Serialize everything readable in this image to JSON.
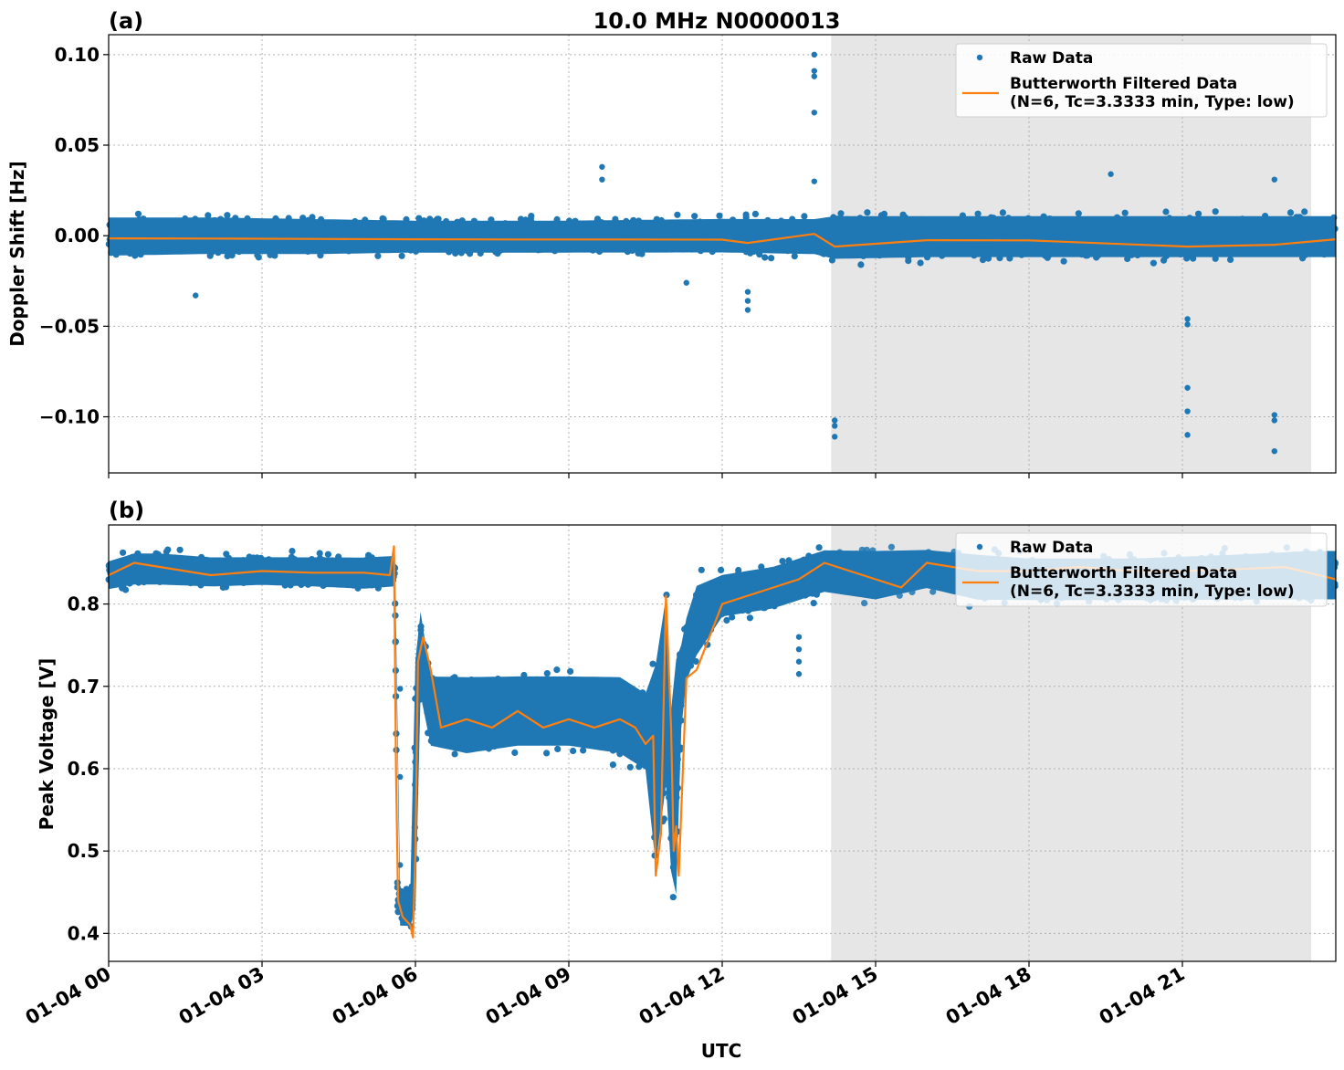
{
  "figure": {
    "title": "10.0 MHz N0000013",
    "xlabel": "UTC"
  },
  "chart_data": [
    {
      "type": "scatter",
      "panel_label": "(a)",
      "ylabel": "Doppler Shift [Hz]",
      "xlim_hours": [
        0,
        24
      ],
      "ylim": [
        -0.131,
        0.111
      ],
      "y_ticks": [
        0.1,
        0.05,
        0.0,
        -0.05,
        -0.1
      ],
      "y_tick_labels": [
        "0.10",
        "0.05",
        "0.00",
        "−0.05",
        "−0.10"
      ],
      "x_tick_hours": [
        0,
        3,
        6,
        9,
        12,
        15,
        18,
        21
      ],
      "x_tick_labels": [
        "01-04 00",
        "01-04 03",
        "01-04 06",
        "01-04 09",
        "01-04 12",
        "01-04 15",
        "01-04 18",
        "01-04 21"
      ],
      "grid": true,
      "legend_placement": "upper right",
      "shaded_span_hours": [
        14.13,
        23.52
      ],
      "series": [
        {
          "name": "Raw Data",
          "kind": "points",
          "color": "#1f77b4",
          "band": {
            "x": [
              0,
              2,
              4,
              6,
              9,
              12,
              13.8,
              14.2,
              16,
              18,
              20,
              22,
              24
            ],
            "y_low": [
              -0.013,
              -0.012,
              -0.012,
              -0.011,
              -0.011,
              -0.011,
              -0.012,
              -0.015,
              -0.014,
              -0.014,
              -0.014,
              -0.014,
              -0.014
            ],
            "y_high": [
              0.012,
              0.012,
              0.011,
              0.01,
              0.01,
              0.011,
              0.011,
              0.013,
              0.013,
              0.013,
              0.013,
              0.013,
              0.013
            ]
          },
          "outliers": [
            {
              "x": 13.8,
              "y": 0.1
            },
            {
              "x": 13.8,
              "y": 0.091
            },
            {
              "x": 13.8,
              "y": 0.088
            },
            {
              "x": 13.8,
              "y": 0.068
            },
            {
              "x": 13.8,
              "y": 0.03
            },
            {
              "x": 9.65,
              "y": 0.038
            },
            {
              "x": 9.65,
              "y": 0.031
            },
            {
              "x": 19.6,
              "y": 0.034
            },
            {
              "x": 22.8,
              "y": 0.031
            },
            {
              "x": 12.5,
              "y": -0.031
            },
            {
              "x": 12.5,
              "y": -0.036
            },
            {
              "x": 12.5,
              "y": -0.041
            },
            {
              "x": 1.7,
              "y": -0.033
            },
            {
              "x": 11.3,
              "y": -0.026
            },
            {
              "x": 14.2,
              "y": -0.102
            },
            {
              "x": 14.2,
              "y": -0.105
            },
            {
              "x": 14.2,
              "y": -0.111
            },
            {
              "x": 21.1,
              "y": -0.046
            },
            {
              "x": 21.1,
              "y": -0.049
            },
            {
              "x": 21.1,
              "y": -0.084
            },
            {
              "x": 21.1,
              "y": -0.097
            },
            {
              "x": 21.1,
              "y": -0.11
            },
            {
              "x": 22.8,
              "y": -0.099
            },
            {
              "x": 22.8,
              "y": -0.102
            },
            {
              "x": 22.8,
              "y": -0.119
            }
          ]
        },
        {
          "name": "Butterworth Filtered Data",
          "name_line2": "(N=6, Tc=3.3333 min, Type: low)",
          "kind": "line",
          "color": "#ff7f0e",
          "x": [
            0,
            2,
            4,
            6,
            8,
            10,
            12,
            12.5,
            13.8,
            14.2,
            16,
            18,
            21.1,
            22.8,
            24
          ],
          "y": [
            -0.0015,
            -0.0016,
            -0.0018,
            -0.002,
            -0.0021,
            -0.0021,
            -0.0022,
            -0.004,
            0.001,
            -0.006,
            -0.0025,
            -0.0026,
            -0.006,
            -0.005,
            -0.002
          ]
        }
      ]
    },
    {
      "type": "scatter",
      "panel_label": "(b)",
      "ylabel": "Peak Voltage [V]",
      "xlim_hours": [
        0,
        24
      ],
      "ylim": [
        0.366,
        0.896
      ],
      "y_ticks": [
        0.8,
        0.7,
        0.6,
        0.5,
        0.4
      ],
      "y_tick_labels": [
        "0.8",
        "0.7",
        "0.6",
        "0.5",
        "0.4"
      ],
      "x_tick_hours": [
        0,
        3,
        6,
        9,
        12,
        15,
        18,
        21
      ],
      "x_tick_labels": [
        "01-04 00",
        "01-04 03",
        "01-04 06",
        "01-04 09",
        "01-04 12",
        "01-04 15",
        "01-04 18",
        "01-04 21"
      ],
      "grid": true,
      "legend_placement": "upper right",
      "shaded_span_hours": [
        14.13,
        23.52
      ],
      "series": [
        {
          "name": "Raw Data",
          "kind": "points",
          "color": "#1f77b4",
          "band": {
            "x": [
              0,
              0.5,
              1.0,
              2.0,
              3.0,
              4.0,
              5.0,
              5.6,
              5.65,
              5.7,
              5.9,
              6.0,
              6.1,
              6.3,
              7.0,
              8.0,
              9.0,
              10.0,
              10.5,
              10.7,
              10.9,
              11.05,
              11.1,
              11.2,
              11.3,
              11.5,
              12.0,
              13.0,
              13.5,
              14.0,
              15.0,
              16.0,
              17.0,
              18.0,
              20.0,
              22.0,
              23.5,
              24.0
            ],
            "y_low": [
              0.815,
              0.82,
              0.82,
              0.818,
              0.82,
              0.818,
              0.815,
              0.818,
              0.42,
              0.405,
              0.405,
              0.4,
              0.68,
              0.62,
              0.61,
              0.62,
              0.62,
              0.61,
              0.59,
              0.46,
              0.56,
              0.405,
              0.42,
              0.64,
              0.7,
              0.73,
              0.78,
              0.79,
              0.8,
              0.81,
              0.8,
              0.815,
              0.8,
              0.8,
              0.8,
              0.8,
              0.8,
              0.8
            ],
            "y_high": [
              0.855,
              0.865,
              0.865,
              0.86,
              0.86,
              0.86,
              0.86,
              0.862,
              0.465,
              0.46,
              0.455,
              0.76,
              0.8,
              0.72,
              0.72,
              0.72,
              0.72,
              0.72,
              0.7,
              0.75,
              0.83,
              0.62,
              0.76,
              0.76,
              0.79,
              0.83,
              0.84,
              0.85,
              0.86,
              0.87,
              0.87,
              0.87,
              0.865,
              0.86,
              0.86,
              0.865,
              0.87,
              0.87
            ]
          },
          "outliers": [
            {
              "x": 5.7,
              "y": 0.697
            },
            {
              "x": 5.7,
              "y": 0.59
            },
            {
              "x": 5.7,
              "y": 0.483
            },
            {
              "x": 6.0,
              "y": 0.62
            },
            {
              "x": 6.0,
              "y": 0.57
            },
            {
              "x": 6.0,
              "y": 0.515
            },
            {
              "x": 13.5,
              "y": 0.715
            },
            {
              "x": 13.5,
              "y": 0.73
            },
            {
              "x": 13.5,
              "y": 0.745
            },
            {
              "x": 13.5,
              "y": 0.76
            }
          ]
        },
        {
          "name": "Butterworth Filtered Data",
          "name_line2": "(N=6, Tc=3.3333 min, Type: low)",
          "kind": "line",
          "color": "#ff7f0e",
          "x": [
            0,
            0.5,
            1.0,
            2.0,
            3.0,
            4.0,
            5.0,
            5.5,
            5.58,
            5.62,
            5.66,
            5.75,
            5.9,
            5.95,
            6.0,
            6.05,
            6.15,
            6.3,
            6.5,
            7.0,
            7.5,
            8.0,
            8.5,
            9.0,
            9.5,
            10.0,
            10.3,
            10.5,
            10.65,
            10.7,
            10.8,
            10.9,
            11.0,
            11.05,
            11.1,
            11.15,
            11.3,
            11.5,
            12.0,
            13.0,
            13.5,
            14.0,
            15.0,
            15.5,
            16.0,
            17.0,
            18.0,
            19.0,
            20.0,
            21.0,
            22.0,
            23.0,
            24.0
          ],
          "y": [
            0.835,
            0.85,
            0.845,
            0.835,
            0.84,
            0.838,
            0.838,
            0.835,
            0.87,
            0.6,
            0.44,
            0.42,
            0.41,
            0.395,
            0.5,
            0.73,
            0.76,
            0.72,
            0.65,
            0.66,
            0.65,
            0.67,
            0.65,
            0.66,
            0.65,
            0.66,
            0.65,
            0.63,
            0.64,
            0.47,
            0.52,
            0.81,
            0.65,
            0.5,
            0.53,
            0.47,
            0.71,
            0.72,
            0.8,
            0.82,
            0.83,
            0.85,
            0.83,
            0.82,
            0.85,
            0.84,
            0.84,
            0.845,
            0.84,
            0.84,
            0.842,
            0.845,
            0.83
          ]
        }
      ]
    }
  ]
}
